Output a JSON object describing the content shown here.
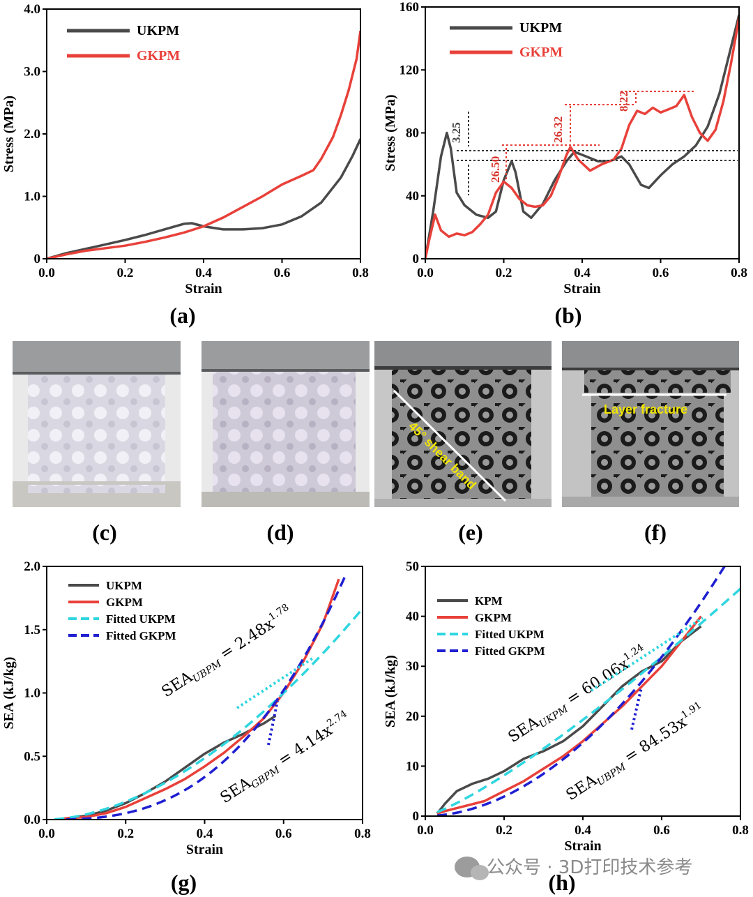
{
  "chart_data": [
    {
      "id": "a",
      "type": "line",
      "panel_label": "(a)",
      "xlabel": "Strain",
      "ylabel": "Stress (MPa)",
      "xlim": [
        0,
        0.8
      ],
      "ylim": [
        0,
        4.0
      ],
      "xticks": [
        "0.0",
        "0.2",
        "0.4",
        "0.6",
        "0.8"
      ],
      "yticks": [
        "0",
        "1.0",
        "2.0",
        "3.0",
        "4.0"
      ],
      "legend": [
        "UKPM",
        "GKPM"
      ],
      "series": [
        {
          "name": "UKPM",
          "color": "#4a4a4a",
          "x": [
            0,
            0.05,
            0.1,
            0.15,
            0.2,
            0.25,
            0.3,
            0.35,
            0.37,
            0.4,
            0.45,
            0.5,
            0.55,
            0.6,
            0.65,
            0.7,
            0.75,
            0.78,
            0.8
          ],
          "y": [
            0,
            0.09,
            0.16,
            0.23,
            0.3,
            0.38,
            0.47,
            0.56,
            0.57,
            0.52,
            0.47,
            0.47,
            0.49,
            0.55,
            0.68,
            0.9,
            1.3,
            1.65,
            1.92
          ]
        },
        {
          "name": "GKPM",
          "color": "#e8413a",
          "x": [
            0,
            0.05,
            0.1,
            0.15,
            0.2,
            0.25,
            0.3,
            0.35,
            0.4,
            0.45,
            0.5,
            0.55,
            0.6,
            0.65,
            0.68,
            0.7,
            0.73,
            0.75,
            0.77,
            0.79,
            0.8
          ],
          "y": [
            0,
            0.07,
            0.13,
            0.17,
            0.21,
            0.27,
            0.34,
            0.42,
            0.52,
            0.66,
            0.83,
            1.0,
            1.19,
            1.33,
            1.42,
            1.6,
            1.95,
            2.3,
            2.7,
            3.2,
            3.65
          ]
        }
      ]
    },
    {
      "id": "b",
      "type": "line",
      "panel_label": "(b)",
      "xlabel": "Strain",
      "ylabel": "Stress (MPa)",
      "xlim": [
        0,
        0.8
      ],
      "ylim": [
        0,
        160
      ],
      "xticks": [
        "0.0",
        "0.2",
        "0.4",
        "0.6",
        "0.8"
      ],
      "yticks": [
        "0",
        "40",
        "80",
        "120",
        "160"
      ],
      "legend": [
        "UKPM",
        "GKPM"
      ],
      "annotations": [
        "3.25",
        "26.50",
        "26.32",
        "8.22"
      ],
      "series": [
        {
          "name": "UKPM",
          "color": "#4a4a4a",
          "x": [
            0,
            0.02,
            0.04,
            0.055,
            0.065,
            0.08,
            0.1,
            0.13,
            0.16,
            0.18,
            0.2,
            0.22,
            0.23,
            0.25,
            0.27,
            0.3,
            0.33,
            0.36,
            0.38,
            0.41,
            0.44,
            0.47,
            0.5,
            0.52,
            0.55,
            0.57,
            0.6,
            0.63,
            0.66,
            0.69,
            0.72,
            0.75,
            0.78,
            0.8
          ],
          "y": [
            0,
            30,
            65,
            80,
            70,
            42,
            34,
            28,
            26,
            30,
            50,
            62,
            55,
            30,
            26,
            35,
            50,
            62,
            68,
            65,
            62,
            62,
            65,
            60,
            47,
            45,
            53,
            60,
            65,
            72,
            84,
            105,
            135,
            155
          ]
        },
        {
          "name": "GKPM",
          "color": "#e8413a",
          "x": [
            0,
            0.01,
            0.025,
            0.04,
            0.06,
            0.08,
            0.1,
            0.12,
            0.14,
            0.16,
            0.18,
            0.2,
            0.22,
            0.24,
            0.26,
            0.28,
            0.3,
            0.32,
            0.34,
            0.36,
            0.37,
            0.39,
            0.42,
            0.45,
            0.48,
            0.5,
            0.52,
            0.54,
            0.56,
            0.58,
            0.6,
            0.62,
            0.64,
            0.66,
            0.68,
            0.7,
            0.72,
            0.74,
            0.76,
            0.78,
            0.8
          ],
          "y": [
            0,
            12,
            28,
            18,
            14,
            16,
            15,
            17,
            22,
            28,
            42,
            49,
            45,
            38,
            34,
            33,
            34,
            40,
            52,
            66,
            71,
            63,
            56,
            60,
            63,
            70,
            85,
            94,
            92,
            96,
            93,
            95,
            97,
            104,
            90,
            80,
            75,
            82,
            100,
            125,
            153
          ]
        }
      ]
    },
    {
      "id": "g",
      "type": "line",
      "panel_label": "(g)",
      "xlabel": "Strain",
      "ylabel": "SEA (kJ/kg)",
      "xlim": [
        0,
        0.8
      ],
      "ylim": [
        0,
        2.0
      ],
      "xticks": [
        "0.0",
        "0.2",
        "0.4",
        "0.6",
        "0.8"
      ],
      "yticks": [
        "0.0",
        "0.5",
        "1.0",
        "1.5",
        "2.0"
      ],
      "legend": [
        "UKPM",
        "GKPM",
        "Fitted UKPM",
        "Fitted GKPM"
      ],
      "equations": [
        {
          "lhs": "SEA",
          "sub": "UBPM",
          "rhs": " = 2.48x",
          "sup": "1.78"
        },
        {
          "lhs": "SEA",
          "sub": "GBPM",
          "rhs": " = 4.14x",
          "sup": "2.74"
        }
      ],
      "series": [
        {
          "name": "UKPM",
          "color": "#4a4a4a",
          "x": [
            0.02,
            0.05,
            0.1,
            0.15,
            0.2,
            0.25,
            0.3,
            0.35,
            0.4,
            0.45,
            0.5,
            0.55,
            0.58
          ],
          "y": [
            0,
            0.01,
            0.03,
            0.07,
            0.13,
            0.21,
            0.3,
            0.41,
            0.52,
            0.61,
            0.68,
            0.76,
            0.82
          ]
        },
        {
          "name": "GKPM",
          "color": "#e8413a",
          "x": [
            0.02,
            0.05,
            0.1,
            0.15,
            0.2,
            0.25,
            0.3,
            0.35,
            0.4,
            0.45,
            0.5,
            0.55,
            0.6,
            0.65,
            0.7,
            0.74
          ],
          "y": [
            0,
            0.01,
            0.02,
            0.05,
            0.1,
            0.17,
            0.24,
            0.32,
            0.42,
            0.53,
            0.66,
            0.8,
            1.0,
            1.25,
            1.55,
            1.9
          ]
        },
        {
          "name": "Fitted UKPM",
          "color": "#2fd6e0",
          "dash": true,
          "fit": "2.48*x^1.78",
          "xrange": [
            0.02,
            0.8
          ]
        },
        {
          "name": "Fitted GKPM",
          "color": "#1f1fd1",
          "dash": true,
          "fit": "4.14*x^2.74",
          "xrange": [
            0.05,
            0.76
          ]
        }
      ]
    },
    {
      "id": "h",
      "type": "line",
      "panel_label": "(h)",
      "xlabel": "Strain",
      "ylabel": "SEA (kJ/kg)",
      "xlim": [
        0,
        0.8
      ],
      "ylim": [
        0,
        50
      ],
      "xticks": [
        "0.0",
        "0.2",
        "0.4",
        "0.6",
        "0.8"
      ],
      "yticks": [
        "0",
        "10",
        "20",
        "30",
        "40",
        "50"
      ],
      "legend": [
        "KPM",
        "GKPM",
        "Fitted UKPM",
        "Fitted GKPM"
      ],
      "equations": [
        {
          "lhs": "SEA",
          "sub": "UKPM",
          "rhs": " = 60.06x",
          "sup": "1.24"
        },
        {
          "lhs": "SEA",
          "sub": "UBPM",
          "rhs": " = 84.53x",
          "sup": "1.91"
        }
      ],
      "series": [
        {
          "name": "KPM",
          "color": "#4a4a4a",
          "x": [
            0.03,
            0.05,
            0.08,
            0.12,
            0.16,
            0.2,
            0.25,
            0.3,
            0.35,
            0.4,
            0.45,
            0.5,
            0.55,
            0.6,
            0.65,
            0.7
          ],
          "y": [
            0.5,
            2.5,
            5,
            6.5,
            7.5,
            9,
            11.5,
            13,
            15,
            18,
            22,
            26,
            29,
            31,
            35,
            38
          ]
        },
        {
          "name": "GKPM",
          "color": "#e8413a",
          "x": [
            0.03,
            0.05,
            0.1,
            0.15,
            0.2,
            0.25,
            0.3,
            0.35,
            0.4,
            0.45,
            0.5,
            0.55,
            0.6,
            0.65,
            0.7
          ],
          "y": [
            0.5,
            1,
            2,
            3,
            5,
            7,
            9.5,
            12,
            15,
            18.5,
            22,
            26,
            30,
            35,
            40
          ]
        },
        {
          "name": "Fitted UKPM",
          "color": "#2fd6e0",
          "dash": true,
          "fit": "60.06*x^1.24",
          "xrange": [
            0.03,
            0.8
          ]
        },
        {
          "name": "Fitted GKPM",
          "color": "#1f1fd1",
          "dash": true,
          "fit": "84.53*x^1.91",
          "xrange": [
            0.03,
            0.76
          ]
        }
      ]
    }
  ],
  "photos": [
    {
      "label": "(c)",
      "caption": ""
    },
    {
      "label": "(d)",
      "caption": ""
    },
    {
      "label": "(e)",
      "caption": "45° shear band"
    },
    {
      "label": "(f)",
      "caption": "Layer fracture"
    }
  ],
  "watermark": "公众号 · 3D打印技术参考"
}
